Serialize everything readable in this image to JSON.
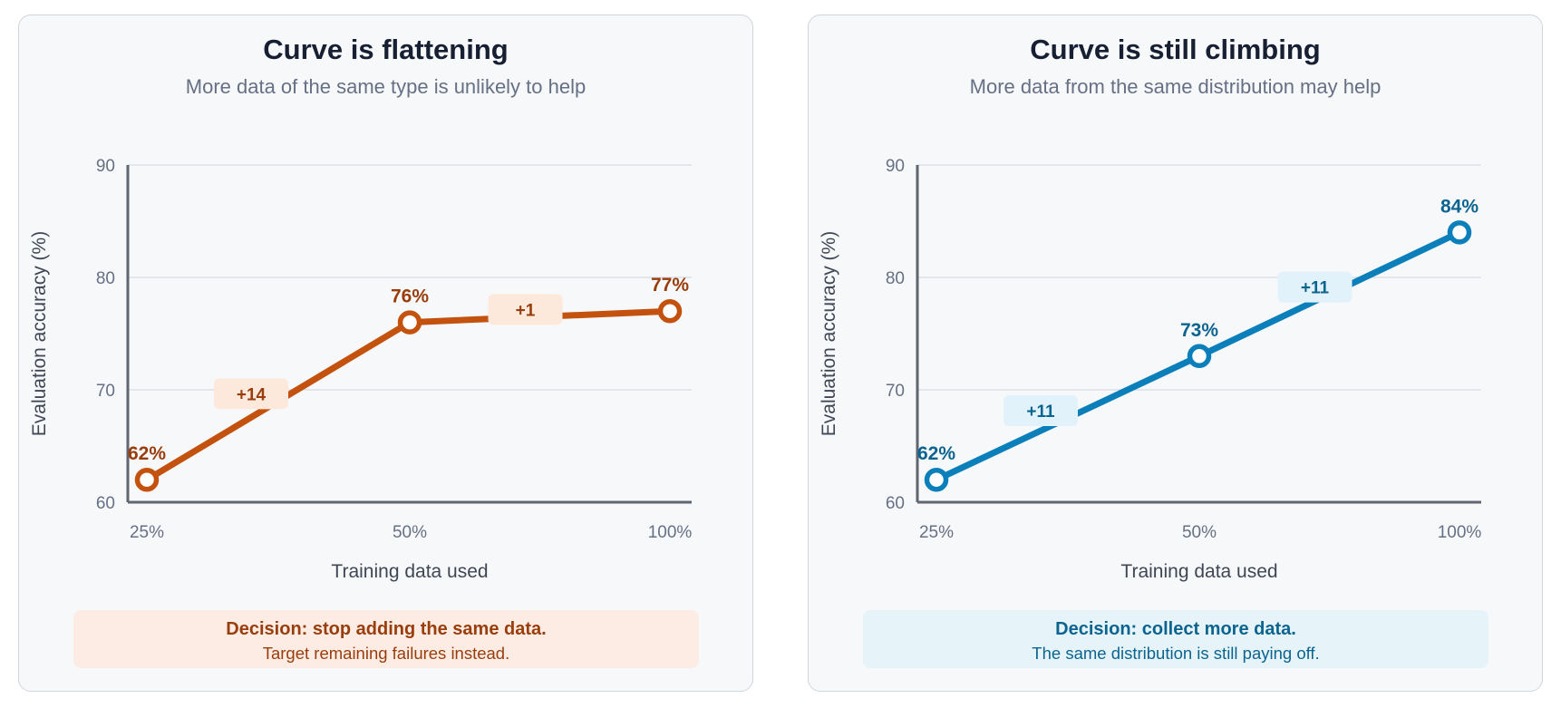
{
  "panels": [
    {
      "title": "Curve is flattening",
      "subtitle": "More data of the same type is unlikely to help",
      "decision_title": "Decision: stop adding the same data.",
      "decision_text": "Target remaining failures instead.",
      "colors": {
        "line": "#c4520f",
        "label": "#9a3d0c",
        "badge_bg": "#fde9dc",
        "decision_bg": "#fdece3"
      }
    },
    {
      "title": "Curve is still climbing",
      "subtitle": "More data from the same distribution may help",
      "decision_title": "Decision: collect more data.",
      "decision_text": "The same distribution is still paying off.",
      "colors": {
        "line": "#0a7fba",
        "label": "#0b6490",
        "badge_bg": "#e1f2fa",
        "decision_bg": "#e6f4fa"
      }
    }
  ],
  "chart_data": [
    {
      "type": "line",
      "title": "Curve is flattening",
      "subtitle": "More data of the same type is unlikely to help",
      "xlabel": "Training data used",
      "ylabel": "Evaluation accuracy (%)",
      "x": [
        "25%",
        "50%",
        "100%"
      ],
      "y": [
        62,
        76,
        77
      ],
      "point_labels": [
        "62%",
        "76%",
        "77%"
      ],
      "deltas": [
        "+14",
        "+1"
      ],
      "ylim": [
        60,
        90
      ],
      "yticks": [
        "60",
        "70",
        "80",
        "90"
      ],
      "grid": true
    },
    {
      "type": "line",
      "title": "Curve is still climbing",
      "subtitle": "More data from the same distribution may help",
      "xlabel": "Training data used",
      "ylabel": "Evaluation accuracy (%)",
      "x": [
        "25%",
        "50%",
        "100%"
      ],
      "y": [
        62,
        73,
        84
      ],
      "point_labels": [
        "62%",
        "73%",
        "84%"
      ],
      "deltas": [
        "+11",
        "+11"
      ],
      "ylim": [
        60,
        90
      ],
      "yticks": [
        "60",
        "70",
        "80",
        "90"
      ],
      "grid": true
    }
  ]
}
